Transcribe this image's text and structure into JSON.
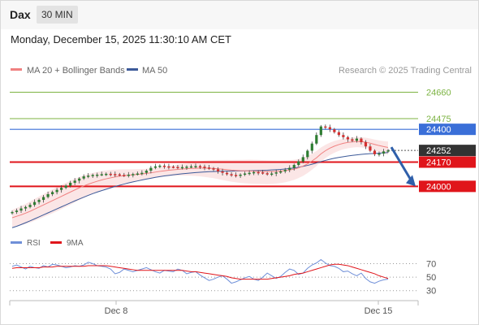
{
  "header": {
    "symbol": "Dax",
    "interval": "30 MIN",
    "datetime": "Monday, December 15, 2025 11:30:10 AM CET"
  },
  "legend": {
    "ma20_label": "MA 20 + Bollinger Bands",
    "ma50_label": "MA 50",
    "copyright": "Research © 2025 Trading Central",
    "rsi_label": "RSI",
    "rsi_ma_label": "9MA"
  },
  "colors": {
    "ma20": "#f08080",
    "ma50": "#3c5a99",
    "bollinger_fill": "#fbe3e3",
    "support": "#e0151b",
    "resistance_blue": "#3a6fd8",
    "resistance_green": "#7cb342",
    "current_price_tag": "#333333",
    "rsi_line": "#6f8fd8",
    "rsi_ma_line": "#e0151b",
    "candle_up": "#2e7d32",
    "candle_down": "#d32f2f",
    "forecast_arrow": "#2f5faa"
  },
  "chart_data": {
    "type": "candlestick",
    "price_axis": {
      "range": [
        23700,
        24760
      ]
    },
    "x_ticks": [
      "Dec 8",
      "Dec 15"
    ],
    "levels": [
      {
        "value": 24660,
        "label": "24660",
        "kind": "resistance-green"
      },
      {
        "value": 24475,
        "label": "24475",
        "kind": "resistance-green"
      },
      {
        "value": 24400,
        "label": "24400",
        "kind": "resistance-blue"
      },
      {
        "value": 24252,
        "label": "24252",
        "kind": "current-price"
      },
      {
        "value": 24170,
        "label": "24170",
        "kind": "support-red"
      },
      {
        "value": 24000,
        "label": "24000",
        "kind": "support-red"
      }
    ],
    "forecast_target": 24000,
    "close_path": [
      23820,
      23830,
      23845,
      23855,
      23870,
      23890,
      23905,
      23925,
      23945,
      23960,
      23975,
      23990,
      24005,
      24025,
      24040,
      24055,
      24070,
      24075,
      24080,
      24082,
      24085,
      24088,
      24086,
      24084,
      24080,
      24078,
      24082,
      24086,
      24090,
      24095,
      24110,
      24130,
      24140,
      24145,
      24140,
      24138,
      24136,
      24134,
      24135,
      24138,
      24140,
      24142,
      24138,
      24132,
      24126,
      24120,
      24105,
      24095,
      24085,
      24080,
      24078,
      24082,
      24090,
      24095,
      24100,
      24098,
      24092,
      24088,
      24090,
      24098,
      24105,
      24115,
      24130,
      24150,
      24175,
      24205,
      24250,
      24300,
      24360,
      24420,
      24415,
      24400,
      24380,
      24360,
      24345,
      24330,
      24320,
      24335,
      24310,
      24280,
      24250,
      24225,
      24230,
      24245,
      24252
    ],
    "ma20_path": [
      23780,
      23790,
      23800,
      23812,
      23825,
      23840,
      23855,
      23870,
      23885,
      23900,
      23915,
      23930,
      23945,
      23960,
      23975,
      23990,
      24003,
      24015,
      24026,
      24036,
      24045,
      24053,
      24060,
      24066,
      24071,
      24075,
      24078,
      24081,
      24084,
      24087,
      24091,
      24095,
      24100,
      24105,
      24109,
      24113,
      24116,
      24119,
      24122,
      24124,
      24126,
      24127,
      24128,
      24128,
      24127,
      24126,
      24123,
      24120,
      24117,
      24114,
      24112,
      24110,
      24109,
      24108,
      24107,
      24106,
      24105,
      24104,
      24104,
      24105,
      24107,
      24110,
      24115,
      24121,
      24130,
      24142,
      24158,
      24178,
      24200,
      24228,
      24250,
      24268,
      24282,
      24293,
      24302,
      24308,
      24312,
      24315,
      24314,
      24310,
      24303,
      24294,
      24286,
      24279,
      24273
    ],
    "ma50_path": [
      23710,
      23720,
      23732,
      23745,
      23758,
      23772,
      23786,
      23800,
      23814,
      23828,
      23842,
      23856,
      23870,
      23884,
      23898,
      23911,
      23924,
      23937,
      23949,
      23960,
      23970,
      23980,
      23990,
      23999,
      24008,
      24016,
      24024,
      24031,
      24038,
      24045,
      24051,
      24057,
      24063,
      24068,
      24073,
      24077,
      24081,
      24085,
      24088,
      24091,
      24094,
      24097,
      24099,
      24101,
      24103,
      24104,
      24105,
      24106,
      24107,
      24107,
      24108,
      24108,
      24109,
      24109,
      24110,
      24111,
      24112,
      24113,
      24115,
      24117,
      24119,
      24122,
      24125,
      24129,
      24134,
      24140,
      24147,
      24155,
      24164,
      24174,
      24182,
      24190,
      24197,
      24203,
      24208,
      24213,
      24217,
      24221,
      24224,
      24227,
      24229,
      24231,
      24233,
      24235,
      24237
    ],
    "rsi": {
      "range": [
        20,
        85
      ],
      "ticks": [
        70,
        50,
        30
      ],
      "values": [
        66,
        68,
        65,
        62,
        66,
        64,
        63,
        67,
        65,
        69,
        68,
        66,
        64,
        65,
        67,
        66,
        68,
        72,
        70,
        67,
        66,
        65,
        62,
        55,
        57,
        62,
        60,
        58,
        60,
        62,
        64,
        61,
        58,
        56,
        60,
        59,
        58,
        62,
        60,
        55,
        57,
        58,
        53,
        49,
        45,
        47,
        50,
        52,
        47,
        41,
        43,
        46,
        49,
        51,
        47,
        45,
        50,
        56,
        52,
        48,
        51,
        57,
        62,
        60,
        54,
        56,
        63,
        68,
        71,
        76,
        71,
        67,
        66,
        63,
        58,
        59,
        55,
        52,
        56,
        48,
        43,
        41,
        44,
        46,
        47
      ],
      "ma_values": [
        63,
        64,
        64,
        64,
        64,
        64,
        64,
        65,
        65,
        65,
        66,
        66,
        66,
        66,
        66,
        66,
        66,
        67,
        67,
        67,
        67,
        67,
        66,
        65,
        64,
        63,
        62,
        61,
        60,
        60,
        60,
        60,
        60,
        60,
        60,
        60,
        60,
        60,
        60,
        59,
        58,
        58,
        57,
        56,
        55,
        54,
        53,
        52,
        51,
        49,
        48,
        47,
        47,
        47,
        47,
        47,
        47,
        47,
        48,
        49,
        50,
        51,
        52,
        54,
        55,
        56,
        58,
        60,
        62,
        64,
        66,
        68,
        69,
        69,
        68,
        67,
        65,
        63,
        61,
        59,
        57,
        55,
        52,
        50,
        48
      ]
    }
  }
}
